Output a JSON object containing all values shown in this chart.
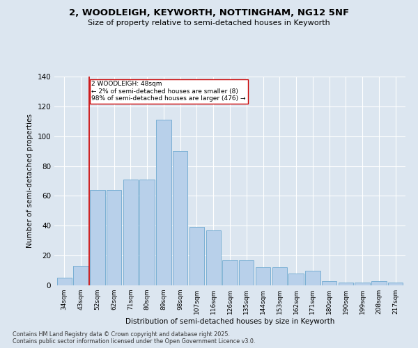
{
  "title_line1": "2, WOODLEIGH, KEYWORTH, NOTTINGHAM, NG12 5NF",
  "title_line2": "Size of property relative to semi-detached houses in Keyworth",
  "xlabel": "Distribution of semi-detached houses by size in Keyworth",
  "ylabel": "Number of semi-detached properties",
  "categories": [
    "34sqm",
    "43sqm",
    "52sqm",
    "62sqm",
    "71sqm",
    "80sqm",
    "89sqm",
    "98sqm",
    "107sqm",
    "116sqm",
    "126sqm",
    "135sqm",
    "144sqm",
    "153sqm",
    "162sqm",
    "171sqm",
    "180sqm",
    "190sqm",
    "199sqm",
    "208sqm",
    "217sqm"
  ],
  "values": [
    5,
    13,
    64,
    64,
    71,
    71,
    111,
    90,
    39,
    37,
    17,
    17,
    12,
    12,
    8,
    10,
    3,
    2,
    2,
    3,
    2
  ],
  "bar_color": "#b8d0ea",
  "bar_edge_color": "#7aafd4",
  "vline_x": 1.5,
  "vline_color": "#cc0000",
  "annotation_title": "2 WOODLEIGH: 48sqm",
  "annotation_line2": "← 2% of semi-detached houses are smaller (8)",
  "annotation_line3": "98% of semi-detached houses are larger (476) →",
  "annotation_box_color": "#cc0000",
  "ylim": [
    0,
    140
  ],
  "yticks": [
    0,
    20,
    40,
    60,
    80,
    100,
    120,
    140
  ],
  "footer_line1": "Contains HM Land Registry data © Crown copyright and database right 2025.",
  "footer_line2": "Contains public sector information licensed under the Open Government Licence v3.0.",
  "bg_color": "#dce6f0",
  "plot_bg_color": "#dce6f0"
}
